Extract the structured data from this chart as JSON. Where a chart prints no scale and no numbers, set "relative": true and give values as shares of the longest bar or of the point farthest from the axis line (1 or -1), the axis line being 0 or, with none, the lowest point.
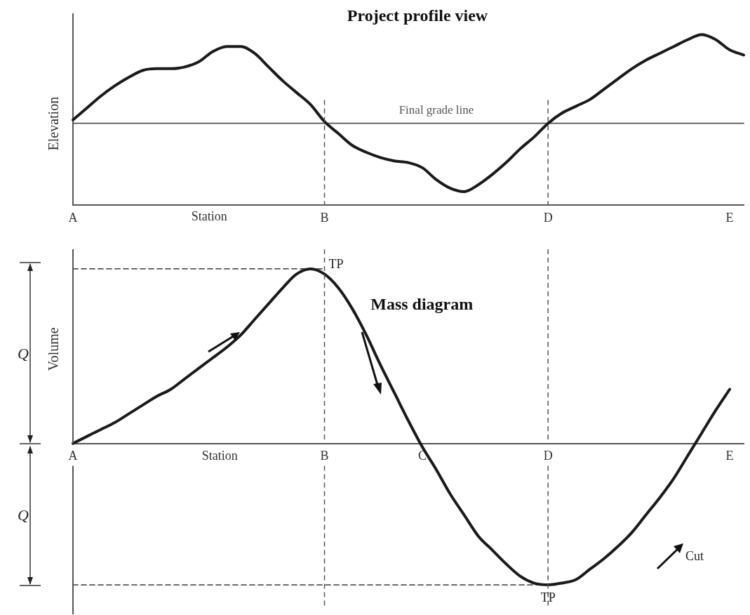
{
  "chart_data": [
    {
      "type": "line",
      "title": "Project profile view",
      "ylabel": "Elevation",
      "xlabel": "Station",
      "relative": true,
      "categories": [
        "A",
        null,
        null,
        null,
        null,
        null,
        null,
        null,
        null,
        null,
        null,
        null,
        null,
        null,
        null,
        null,
        null,
        null,
        "B",
        null,
        null,
        null,
        null,
        null,
        null,
        null,
        null,
        null,
        null,
        null,
        null,
        null,
        null,
        null,
        "D",
        null,
        null,
        null,
        null,
        null,
        null,
        null,
        null,
        null,
        null,
        null,
        null,
        "E",
        null
      ],
      "series": [
        {
          "color": "#1a1a1a",
          "values": [
            0.5,
            0.57,
            0.64,
            0.7,
            0.75,
            0.79,
            0.8,
            0.8,
            0.81,
            0.84,
            0.9,
            0.93,
            0.93,
            0.89,
            0.81,
            0.73,
            0.66,
            0.59,
            0.49,
            0.42,
            0.35,
            0.31,
            0.28,
            0.26,
            0.25,
            0.22,
            0.15,
            0.1,
            0.08,
            0.12,
            0.18,
            0.25,
            0.33,
            0.4,
            0.48,
            0.54,
            0.58,
            0.62,
            0.68,
            0.74,
            0.8,
            0.85,
            0.89,
            0.93,
            0.97,
            1.0,
            0.97,
            0.91,
            0.88
          ]
        },
        {
          "name": "Final grade line",
          "color": "#555555",
          "values": [
            0.48,
            0.48,
            0.48,
            0.48,
            0.48,
            0.48,
            0.48,
            0.48,
            0.48,
            0.48,
            0.48,
            0.48,
            0.48,
            0.48,
            0.48,
            0.48,
            0.48,
            0.48,
            0.48,
            0.48,
            0.48,
            0.48,
            0.48,
            0.48,
            0.48,
            0.48,
            0.48,
            0.48,
            0.48,
            0.48,
            0.48,
            0.48,
            0.48,
            0.48,
            0.48,
            0.48,
            0.48,
            0.48,
            0.48,
            0.48,
            0.48,
            0.48,
            0.48,
            0.48,
            0.48,
            0.48,
            0.48,
            0.48,
            0.48
          ]
        }
      ],
      "ref_lines": [
        {
          "axis": "x",
          "value": "B",
          "color": "#555555",
          "line_style": "dashed"
        },
        {
          "axis": "x",
          "value": "D",
          "color": "#555555",
          "line_style": "dashed"
        }
      ],
      "grid": false,
      "legend": false,
      "marker": "none",
      "line_style": "solid"
    },
    {
      "type": "line",
      "title": "Mass diagram",
      "ylabel": "Volume",
      "xlabel": "Station",
      "relative": true,
      "categories": [
        "A",
        null,
        null,
        null,
        null,
        null,
        null,
        null,
        null,
        null,
        null,
        null,
        null,
        null,
        null,
        null,
        null,
        null,
        "B",
        null,
        null,
        null,
        null,
        null,
        null,
        "C",
        null,
        null,
        null,
        null,
        null,
        null,
        null,
        null,
        "D",
        null,
        null,
        null,
        null,
        null,
        null,
        null,
        null,
        null,
        null,
        null,
        null,
        "E",
        null
      ],
      "series": [
        {
          "color": "#1a1a1a",
          "values": [
            0,
            0.04,
            0.08,
            0.12,
            0.17,
            0.22,
            0.27,
            0.31,
            0.37,
            0.43,
            0.49,
            0.55,
            0.62,
            0.71,
            0.8,
            0.89,
            0.97,
            1.0,
            0.97,
            0.89,
            0.77,
            0.62,
            0.45,
            0.29,
            0.13,
            -0.02,
            -0.15,
            -0.29,
            -0.41,
            -0.53,
            -0.61,
            -0.69,
            -0.76,
            -0.8,
            -0.81,
            -0.8,
            -0.78,
            -0.72,
            -0.66,
            -0.59,
            -0.51,
            -0.41,
            -0.31,
            -0.2,
            -0.07,
            0.06,
            0.19,
            0.31,
            null
          ]
        },
        {
          "color": "#555555",
          "line_style": "dashed",
          "values": [
            1,
            1,
            1,
            1,
            1,
            1,
            1,
            1,
            1,
            1,
            1,
            1,
            1,
            1,
            1,
            1,
            1,
            1,
            1,
            null,
            null,
            null,
            null,
            null,
            null,
            null,
            null,
            null,
            null,
            null,
            null,
            null,
            null,
            null,
            null,
            null,
            null,
            null,
            null,
            null,
            null,
            null,
            null,
            null,
            null,
            null,
            null,
            null,
            null
          ]
        },
        {
          "color": "#555555",
          "line_style": "dashed",
          "values": [
            -0.81,
            -0.81,
            -0.81,
            -0.81,
            -0.81,
            -0.81,
            -0.81,
            -0.81,
            -0.81,
            -0.81,
            -0.81,
            -0.81,
            -0.81,
            -0.81,
            -0.81,
            -0.81,
            -0.81,
            -0.81,
            -0.81,
            -0.81,
            -0.81,
            -0.81,
            -0.81,
            -0.81,
            -0.81,
            -0.81,
            -0.81,
            -0.81,
            -0.81,
            -0.81,
            -0.81,
            -0.81,
            -0.81,
            -0.81,
            -0.81,
            null,
            null,
            null,
            null,
            null,
            null,
            null,
            null,
            null,
            null,
            null,
            null,
            null,
            null
          ]
        }
      ],
      "ref_lines": [
        {
          "axis": "x",
          "value": "B",
          "color": "#555555",
          "line_style": "dashed"
        },
        {
          "axis": "x",
          "value": "D",
          "color": "#555555",
          "line_style": "dashed"
        }
      ],
      "annotations": [
        {
          "text": "TP",
          "x": "B"
        },
        {
          "text": "TP",
          "x": "D"
        },
        "Cut",
        "Q",
        "Q"
      ],
      "grid": false,
      "legend": false,
      "marker": "none",
      "line_style": "solid"
    }
  ]
}
